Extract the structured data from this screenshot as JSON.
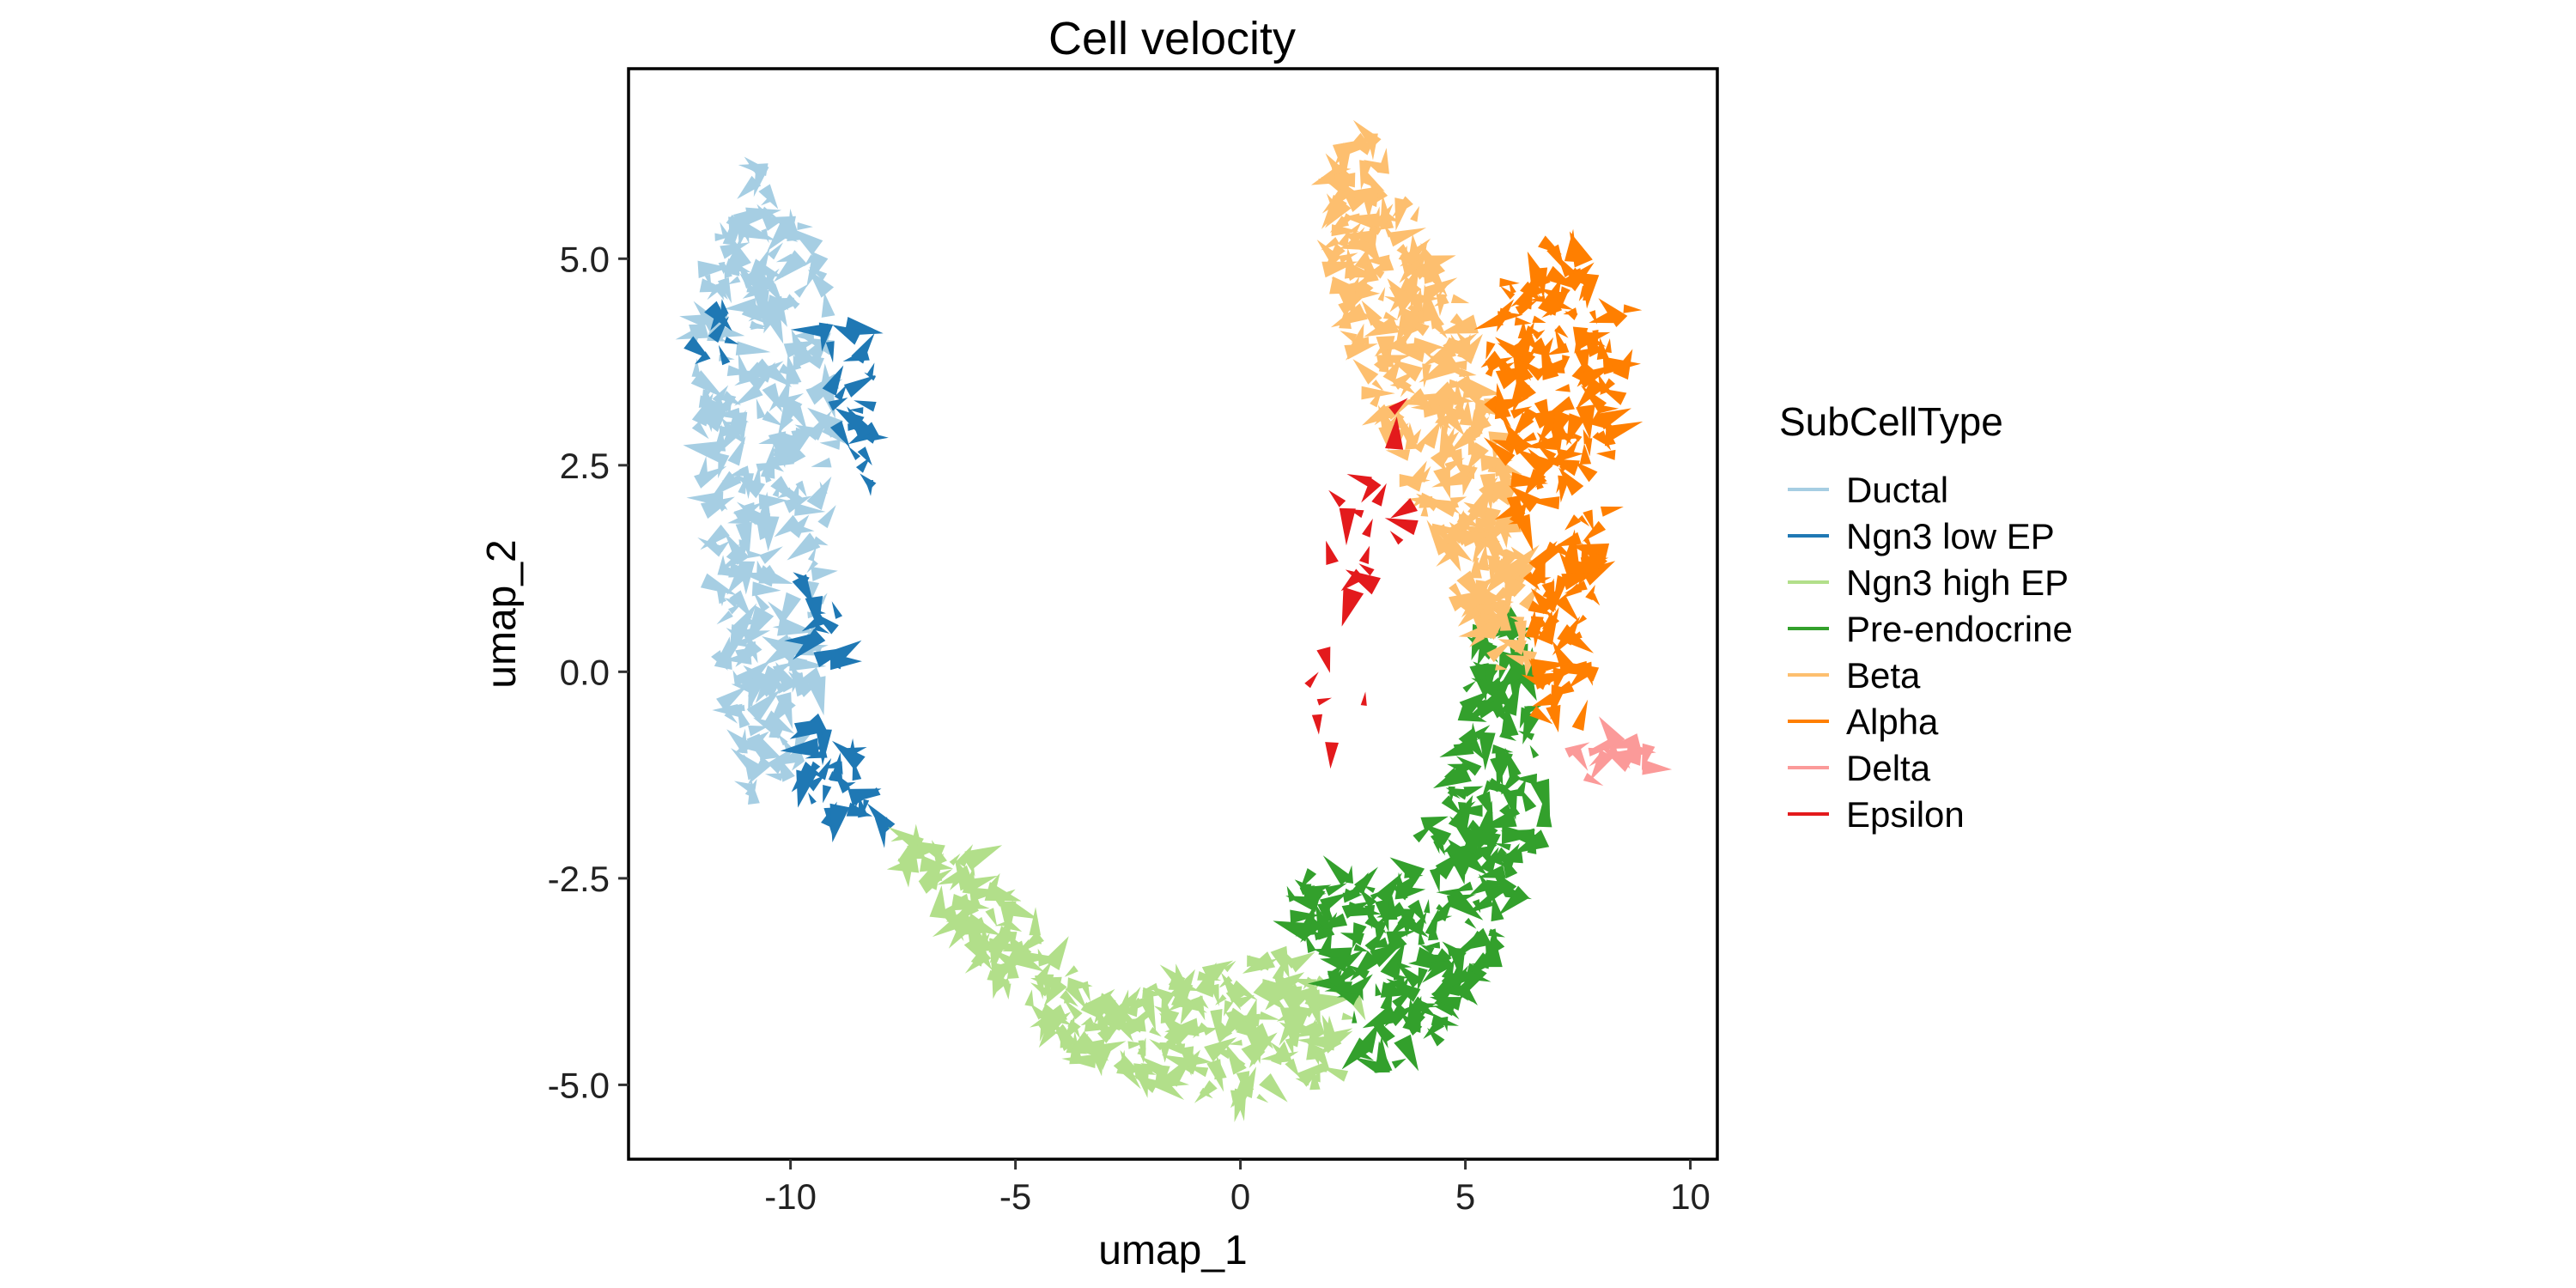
{
  "chart_data": {
    "type": "scatter",
    "marker": "arrow",
    "title": "Cell velocity",
    "xlabel": "umap_1",
    "ylabel": "umap_2",
    "xlim": [
      -13.6,
      10.6
    ],
    "ylim": [
      -5.9,
      7.3
    ],
    "xticks": [
      -10,
      -5,
      0,
      5,
      10
    ],
    "xtick_labels": [
      "-10",
      "-5",
      "0",
      "5",
      "10"
    ],
    "yticks": [
      -5,
      -2.5,
      0,
      2.5,
      5
    ],
    "ytick_labels": [
      "-5.0",
      "-2.5",
      "0.0",
      "2.5",
      "5.0"
    ],
    "grid": false,
    "legend": {
      "title": "SubCellType",
      "position": "right",
      "entries": [
        {
          "name": "Ductal",
          "color": "#A6CEE3"
        },
        {
          "name": "Ngn3 low EP",
          "color": "#1F78B4"
        },
        {
          "name": "Ngn3 high EP",
          "color": "#B2DF8A"
        },
        {
          "name": "Pre-endocrine",
          "color": "#33A02C"
        },
        {
          "name": "Beta",
          "color": "#FDBF6F"
        },
        {
          "name": "Alpha",
          "color": "#FF7F00"
        },
        {
          "name": "Delta",
          "color": "#FB9A99"
        },
        {
          "name": "Epsilon",
          "color": "#E31A1C"
        }
      ]
    },
    "series": [
      {
        "name": "Ductal",
        "color": "#A6CEE3",
        "region": {
          "path": [
            [
              -10.8,
              6.2
            ],
            [
              -11.8,
              5.2
            ],
            [
              -12.2,
              4.0
            ],
            [
              -12.0,
              2.5
            ],
            [
              -11.8,
              1.0
            ],
            [
              -11.5,
              -0.2
            ],
            [
              -11.2,
              -1.5
            ],
            [
              -10.5,
              -1.6
            ],
            [
              -9.8,
              -1.2
            ],
            [
              -9.3,
              0.0
            ],
            [
              -9.2,
              1.5
            ],
            [
              -9.0,
              3.0
            ],
            [
              -9.2,
              4.5
            ],
            [
              -9.5,
              5.4
            ],
            [
              -10.2,
              6.0
            ]
          ],
          "count": 340
        }
      },
      {
        "name": "Ngn3 low EP",
        "color": "#1F78B4",
        "region": {
          "path": [
            [
              -9.4,
              4.4
            ],
            [
              -8.4,
              4.3
            ],
            [
              -7.9,
              3.2
            ],
            [
              -8.2,
              2.2
            ],
            [
              -8.9,
              2.8
            ],
            [
              -9.5,
              3.8
            ]
          ],
          "count": 28,
          "extra": [
            {
              "path": [
                [
                  -9.8,
                  -0.6
                ],
                [
                  -8.6,
                  -0.8
                ],
                [
                  -7.8,
                  -1.9
                ],
                [
                  -9.0,
                  -1.9
                ],
                [
                  -9.9,
                  -1.3
                ]
              ],
              "count": 34
            },
            {
              "path": [
                [
                  -12.2,
                  4.4
                ],
                [
                  -11.3,
                  4.5
                ],
                [
                  -11.3,
                  3.6
                ],
                [
                  -12.1,
                  3.7
                ]
              ],
              "count": 8
            },
            {
              "path": [
                [
                  -9.8,
                  1.2
                ],
                [
                  -8.8,
                  1.2
                ],
                [
                  -8.8,
                  -0.2
                ],
                [
                  -9.7,
                  -0.1
                ]
              ],
              "count": 14
            }
          ]
        }
      },
      {
        "name": "Ngn3 high EP",
        "color": "#B2DF8A",
        "region": {
          "path": [
            [
              -7.6,
              -2.0
            ],
            [
              -5.8,
              -2.2
            ],
            [
              -4.4,
              -3.2
            ],
            [
              -3.0,
              -4.0
            ],
            [
              -1.0,
              -3.6
            ],
            [
              1.0,
              -3.4
            ],
            [
              2.6,
              -4.0
            ],
            [
              2.2,
              -4.9
            ],
            [
              0.4,
              -5.2
            ],
            [
              -1.6,
              -5.1
            ],
            [
              -3.6,
              -4.7
            ],
            [
              -5.2,
              -4.0
            ],
            [
              -6.6,
              -3.0
            ],
            [
              -7.4,
              -2.5
            ]
          ],
          "count": 300
        }
      },
      {
        "name": "Pre-endocrine",
        "color": "#33A02C",
        "region": {
          "path": [
            [
              1.2,
              -2.3
            ],
            [
              3.4,
              -2.6
            ],
            [
              4.8,
              -1.0
            ],
            [
              5.2,
              0.5
            ],
            [
              6.4,
              0.7
            ],
            [
              6.8,
              -1.8
            ],
            [
              6.0,
              -3.0
            ],
            [
              5.0,
              -4.2
            ],
            [
              3.6,
              -4.8
            ],
            [
              2.6,
              -4.8
            ],
            [
              2.4,
              -4.0
            ],
            [
              1.0,
              -3.0
            ]
          ],
          "count": 300
        }
      },
      {
        "name": "Beta",
        "color": "#FDBF6F",
        "region": {
          "path": [
            [
              2.0,
              6.2
            ],
            [
              2.8,
              6.7
            ],
            [
              3.8,
              5.6
            ],
            [
              4.8,
              4.6
            ],
            [
              5.6,
              3.2
            ],
            [
              6.2,
              1.6
            ],
            [
              6.6,
              0.2
            ],
            [
              5.8,
              -0.1
            ],
            [
              5.0,
              0.6
            ],
            [
              4.2,
              1.8
            ],
            [
              3.4,
              2.6
            ],
            [
              2.6,
              3.8
            ],
            [
              2.0,
              4.8
            ]
          ],
          "count": 340
        }
      },
      {
        "name": "Alpha",
        "color": "#FF7F00",
        "region": {
          "path": [
            [
              5.6,
              4.6
            ],
            [
              7.0,
              5.3
            ],
            [
              8.2,
              5.1
            ],
            [
              8.8,
              4.2
            ],
            [
              8.3,
              2.5
            ],
            [
              8.0,
              1.2
            ],
            [
              7.6,
              -0.6
            ],
            [
              6.6,
              -0.6
            ],
            [
              6.4,
              1.2
            ],
            [
              5.8,
              2.6
            ],
            [
              5.5,
              3.6
            ]
          ],
          "count": 220
        }
      },
      {
        "name": "Delta",
        "color": "#FB9A99",
        "region": {
          "path": [
            [
              7.4,
              -0.7
            ],
            [
              8.6,
              -0.8
            ],
            [
              9.6,
              -1.1
            ],
            [
              8.6,
              -1.4
            ],
            [
              7.4,
              -1.4
            ]
          ],
          "count": 18
        }
      },
      {
        "name": "Epsilon",
        "color": "#E31A1C",
        "region": {
          "path": [
            [
              2.6,
              3.2
            ],
            [
              3.6,
              3.6
            ],
            [
              4.2,
              2.0
            ],
            [
              3.6,
              1.4
            ],
            [
              2.8,
              0.4
            ],
            [
              3.4,
              -0.6
            ],
            [
              2.6,
              -1.0
            ],
            [
              1.6,
              -1.4
            ],
            [
              1.4,
              0.0
            ],
            [
              2.0,
              1.4
            ],
            [
              2.2,
              2.4
            ]
          ],
          "count": 24
        }
      }
    ]
  }
}
